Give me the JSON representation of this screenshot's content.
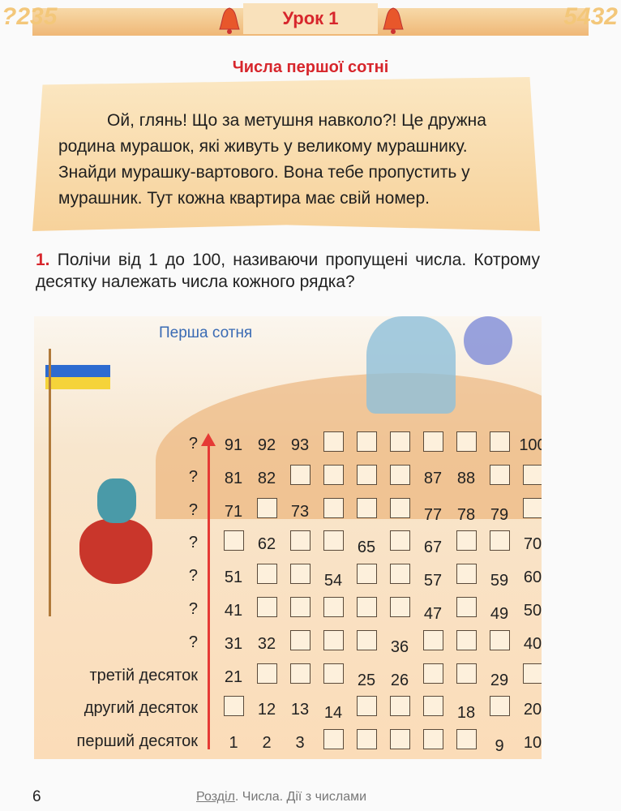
{
  "header": {
    "lesson": "Урок 1",
    "deco_left": "?235",
    "deco_right": "5432"
  },
  "subtitle": "Числа першої сотні",
  "intro": "Ой, глянь! Що за метушня навколо?! Це дружна родина мурашок, які живуть у великому мурашнику. Знайди мурашку-вартового. Вона тебе пропустить у мурашник. Тут кожна квартира має свій номер.",
  "task": {
    "number": "1.",
    "text": "Полічи від 1 до 100, називаючи пропущені числа. Котрому десятку належать числа кожного рядка?"
  },
  "illustration": {
    "caption": "Перша сотня"
  },
  "grid": {
    "row_labels": [
      "?",
      "?",
      "?",
      "?",
      "?",
      "?",
      "?",
      "третій десяток",
      "другий десяток",
      "перший десяток"
    ],
    "rows": [
      [
        "91",
        "92",
        "93",
        null,
        null,
        null,
        null,
        null,
        null,
        "100"
      ],
      [
        "81",
        "82",
        null,
        null,
        null,
        null,
        "87",
        "88",
        null,
        null
      ],
      [
        "71",
        null,
        "73",
        null,
        null,
        null,
        "77",
        "78",
        "79",
        null
      ],
      [
        null,
        "62",
        null,
        null,
        "65",
        null,
        "67",
        null,
        null,
        "70"
      ],
      [
        "51",
        null,
        null,
        "54",
        null,
        null,
        "57",
        null,
        "59",
        "60"
      ],
      [
        "41",
        null,
        null,
        null,
        null,
        null,
        "47",
        null,
        "49",
        "50"
      ],
      [
        "31",
        "32",
        null,
        null,
        null,
        "36",
        null,
        null,
        null,
        "40"
      ],
      [
        "21",
        null,
        null,
        null,
        "25",
        "26",
        null,
        null,
        "29",
        null
      ],
      [
        null,
        "12",
        "13",
        "14",
        null,
        null,
        null,
        "18",
        null,
        "20"
      ],
      [
        "1",
        "2",
        "3",
        null,
        null,
        null,
        null,
        null,
        "9",
        "10"
      ]
    ]
  },
  "footer": {
    "page": "6",
    "section": "Розділ",
    "section_rest": ". Числа. Дії з числами"
  },
  "colors": {
    "accent": "#d7262c",
    "caption": "#3a6bb4",
    "arrow": "#e53a35"
  }
}
